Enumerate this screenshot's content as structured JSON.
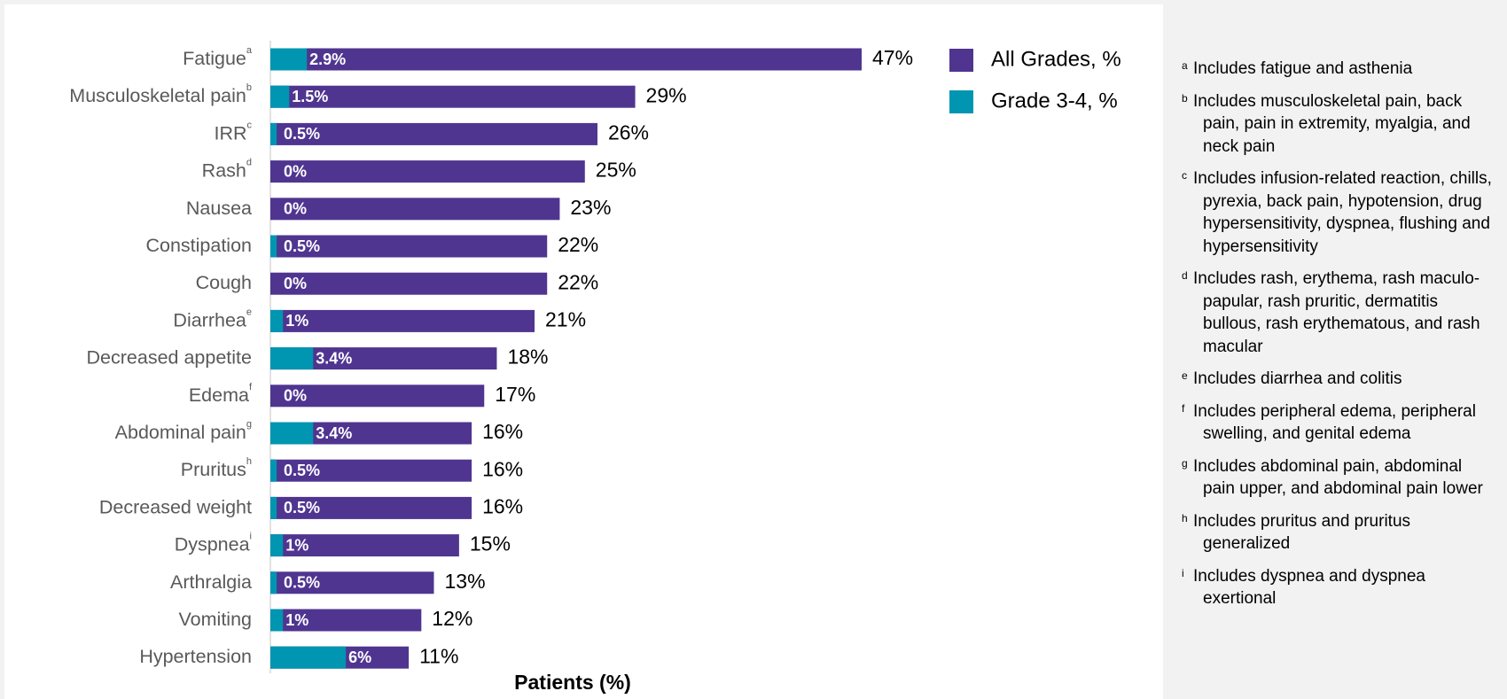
{
  "chart_data": {
    "type": "bar",
    "orientation": "horizontal",
    "overlap": true,
    "categories": [
      "Fatigue",
      "Musculoskeletal pain",
      "IRR",
      "Rash",
      "Nausea",
      "Constipation",
      "Cough",
      "Diarrhea",
      "Decreased appetite",
      "Edema",
      "Abdominal pain",
      "Pruritus",
      "Decreased weight",
      "Dyspnea",
      "Arthralgia",
      "Vomiting",
      "Hypertension"
    ],
    "category_notes": [
      "a",
      "b",
      "c",
      "d",
      null,
      null,
      null,
      "e",
      null,
      "f",
      "g",
      "h",
      null,
      "i",
      null,
      null,
      null
    ],
    "series": [
      {
        "name": "All Grades, %",
        "color": "#4f3590",
        "values": [
          47,
          29,
          26,
          25,
          23,
          22,
          22,
          21,
          18,
          17,
          16,
          16,
          16,
          15,
          13,
          12,
          11
        ],
        "value_labels": [
          "47%",
          "29%",
          "26%",
          "25%",
          "23%",
          "22%",
          "22%",
          "21%",
          "18%",
          "17%",
          "16%",
          "16%",
          "16%",
          "15%",
          "13%",
          "12%",
          "11%"
        ]
      },
      {
        "name": "Grade 3-4, %",
        "color": "#0095b0",
        "values": [
          2.9,
          1.5,
          0.5,
          0,
          0,
          0.5,
          0,
          1,
          3.4,
          0,
          3.4,
          0.5,
          0.5,
          1,
          0.5,
          1,
          6
        ],
        "value_labels": [
          "2.9%",
          "1.5%",
          "0.5%",
          "0%",
          "0%",
          "0.5%",
          "0%",
          "1%",
          "3.4%",
          "0%",
          "3.4%",
          "0.5%",
          "0.5%",
          "1%",
          "0.5%",
          "1%",
          "6%"
        ]
      }
    ],
    "x_label": "Patients (%)",
    "legend": "top-right"
  },
  "footnotes": [
    {
      "marker": "a",
      "text": "Includes fatigue and asthenia"
    },
    {
      "marker": "b",
      "text": "Includes musculoskeletal pain, back pain, pain in extremity, myalgia, and neck pain"
    },
    {
      "marker": "c",
      "text": "Includes infusion-related reaction, chills, pyrexia, back pain, hypotension, drug hypersensitivity, dyspnea, flushing and hypersensitivity"
    },
    {
      "marker": "d",
      "text": "Includes rash, erythema, rash maculo-papular, rash pruritic, dermatitis bullous, rash erythematous, and rash macular"
    },
    {
      "marker": "e",
      "text": "Includes diarrhea and colitis"
    },
    {
      "marker": "f",
      "text": "Includes peripheral edema, peripheral swelling, and genital edema"
    },
    {
      "marker": "g",
      "text": "Includes abdominal pain, abdominal pain upper, and abdominal pain lower"
    },
    {
      "marker": "h",
      "text": "Includes pruritus and pruritus generalized"
    },
    {
      "marker": "i",
      "text": "Includes dyspnea and dyspnea exertional"
    }
  ]
}
